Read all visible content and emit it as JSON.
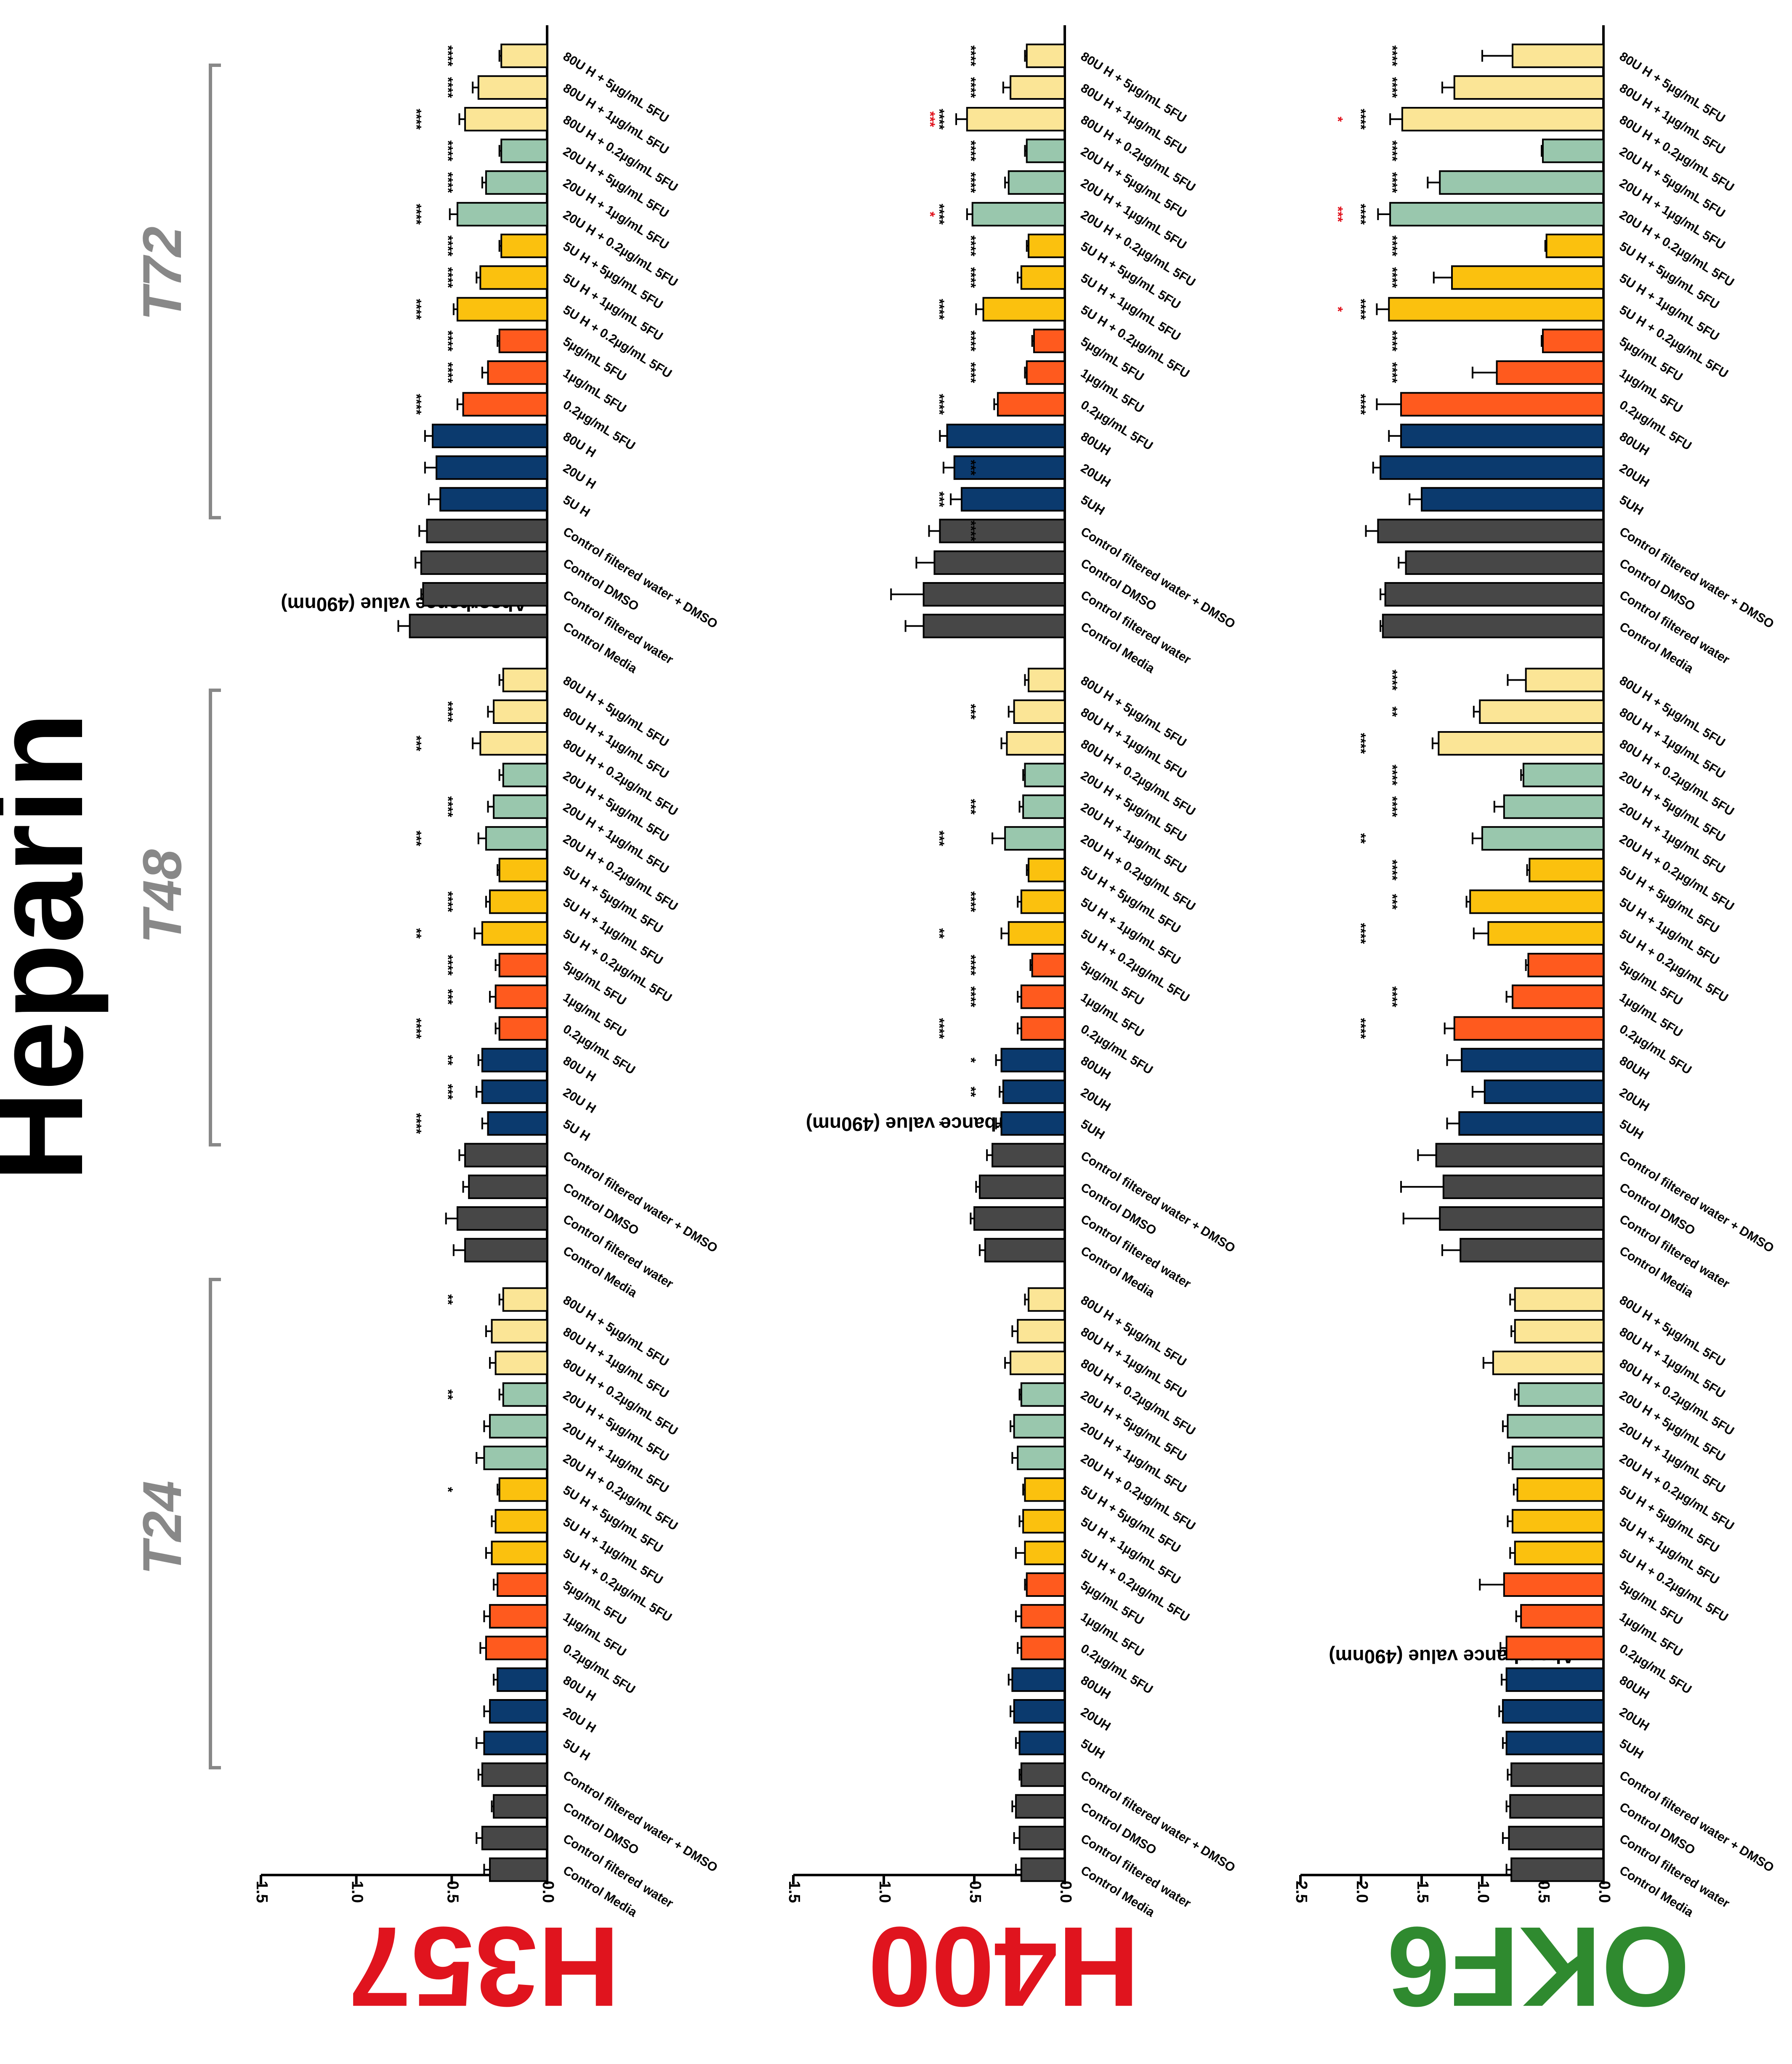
{
  "title": "Heparin",
  "time_labels": [
    "T24",
    "T48",
    "T72"
  ],
  "colors": {
    "control": "#474747",
    "dose5": "#0b3a6e",
    "frag": "#ff5a1e",
    "combo5": "#fbc10e",
    "combo20": "#99c7ad",
    "combo80": "#fbe596",
    "text": "#000000",
    "red": "#e0141e",
    "green": "#2f8a2f",
    "bracket": "#888888"
  },
  "group_colors": [
    "control",
    "control",
    "control",
    "control",
    "dose5",
    "dose5",
    "dose5",
    "frag",
    "frag",
    "frag",
    "combo5",
    "combo5",
    "combo5",
    "combo20",
    "combo20",
    "combo20",
    "combo80",
    "combo80",
    "combo80"
  ],
  "chart_data": [
    {
      "type": "bar",
      "cell_line": "H357",
      "cell_color": "#e0141e",
      "ylabel": "Absorbance value (490nm)",
      "ylim": [
        0,
        1.5
      ],
      "ticks": [
        "0.0",
        "0.5",
        "1.0",
        "1.5"
      ],
      "tick_values": [
        0,
        0.5,
        1.0,
        1.5
      ],
      "categories": [
        "Control Media",
        "Control filtered water",
        "Control DMSO",
        "Control filtered water + DMSO",
        "5U H",
        "20U H",
        "80U H",
        "0.2µg/mL 5FU",
        "1µg/mL 5FU",
        "5µg/mL 5FU",
        "5U H + 0.2µg/mL 5FU",
        "5U H + 1µg/mL 5FU",
        "5U H + 5µg/mL 5FU",
        "20U H + 0.2µg/mL 5FU",
        "20U H + 1µg/mL 5FU",
        "20U H + 5µg/mL 5FU",
        "80U H + 0.2µg/mL 5FU",
        "80U H + 1µg/mL 5FU",
        "80U H + 5µg/mL 5FU"
      ],
      "series": [
        {
          "name": "T24",
          "values": [
            0.3,
            0.34,
            0.28,
            0.34,
            0.33,
            0.3,
            0.26,
            0.32,
            0.3,
            0.26,
            0.29,
            0.27,
            0.25,
            0.33,
            0.3,
            0.23,
            0.27,
            0.29,
            0.23
          ],
          "errors": [
            0.03,
            0.03,
            0.01,
            0.02,
            0.04,
            0.03,
            0.02,
            0.03,
            0.03,
            0.02,
            0.03,
            0.02,
            0.01,
            0.04,
            0.03,
            0.02,
            0.03,
            0.03,
            0.02
          ],
          "stars": [
            "",
            "",
            "",
            "",
            "",
            "",
            "",
            "",
            "",
            "",
            "",
            "",
            "*",
            "",
            "",
            "**",
            "",
            "",
            "**"
          ],
          "star_colors": [
            "",
            "",
            "",
            "",
            "",
            "",
            "",
            "",
            "",
            "",
            "",
            "",
            "black",
            "",
            "",
            "black",
            "",
            "",
            "black"
          ]
        },
        {
          "name": "T48",
          "values": [
            0.43,
            0.47,
            0.41,
            0.43,
            0.31,
            0.34,
            0.34,
            0.25,
            0.27,
            0.25,
            0.34,
            0.3,
            0.25,
            0.32,
            0.28,
            0.23,
            0.35,
            0.28,
            0.23
          ],
          "errors": [
            0.06,
            0.06,
            0.03,
            0.03,
            0.03,
            0.03,
            0.02,
            0.02,
            0.03,
            0.02,
            0.04,
            0.02,
            0.01,
            0.04,
            0.03,
            0.02,
            0.04,
            0.03,
            0.02
          ],
          "stars": [
            "",
            "",
            "",
            "",
            "****",
            "***",
            "**",
            "****",
            "***",
            "****",
            "**",
            "****",
            "",
            "***",
            "****",
            "",
            "***",
            "****",
            ""
          ],
          "star_colors": [
            "",
            "",
            "",
            "",
            "black",
            "black",
            "black",
            "black",
            "black",
            "black",
            "black",
            "black",
            "",
            "black",
            "black",
            "",
            "black",
            "black",
            ""
          ]
        },
        {
          "name": "T72",
          "values": [
            0.72,
            0.65,
            0.66,
            0.63,
            0.56,
            0.58,
            0.6,
            0.44,
            0.31,
            0.25,
            0.47,
            0.35,
            0.24,
            0.47,
            0.32,
            0.24,
            0.43,
            0.36,
            0.24
          ],
          "errors": [
            0.06,
            0.01,
            0.03,
            0.04,
            0.06,
            0.06,
            0.04,
            0.03,
            0.03,
            0.01,
            0.02,
            0.02,
            0.01,
            0.04,
            0.02,
            0.01,
            0.03,
            0.03,
            0.01
          ],
          "stars": [
            "",
            "",
            "",
            "",
            "",
            "",
            "",
            "****",
            "****",
            "****",
            "****",
            "****",
            "****",
            "****",
            "****",
            "****",
            "****",
            "****",
            "****"
          ],
          "star_colors": [
            "",
            "",
            "",
            "",
            "",
            "",
            "",
            "black",
            "black",
            "black",
            "black",
            "black",
            "black",
            "black",
            "black",
            "black",
            "black",
            "black",
            "black"
          ]
        }
      ]
    },
    {
      "type": "bar",
      "cell_line": "H400",
      "cell_color": "#e0141e",
      "ylabel": "Absorbance value (490nm)",
      "ylim": [
        0,
        1.5
      ],
      "ticks": [
        "0.0",
        "0.5",
        "1.0",
        "1.5"
      ],
      "tick_values": [
        0,
        0.5,
        1.0,
        1.5
      ],
      "categories": [
        "Control Media",
        "Control filtered water",
        "Control DMSO",
        "Control filtered water + DMSO",
        "5UH",
        "20UH",
        "80UH",
        "0.2µg/mL 5FU",
        "1µg/mL 5FU",
        "5µg/mL 5FU",
        "5U H + 0.2µg/mL 5FU",
        "5U H + 1µg/mL 5FU",
        "5U H + 5µg/mL 5FU",
        "20U H + 0.2µg/mL 5FU",
        "20U H + 1µg/mL 5FU",
        "20U H + 5µg/mL 5FU",
        "80U H + 0.2µg/mL 5FU",
        "80U H + 1µg/mL 5FU",
        "80U H + 5µg/mL 5FU"
      ],
      "series": [
        {
          "name": "T24",
          "values": [
            0.24,
            0.25,
            0.27,
            0.24,
            0.25,
            0.28,
            0.29,
            0.24,
            0.24,
            0.21,
            0.22,
            0.23,
            0.22,
            0.26,
            0.28,
            0.24,
            0.3,
            0.26,
            0.2
          ],
          "errors": [
            0.03,
            0.03,
            0.02,
            0.01,
            0.02,
            0.02,
            0.02,
            0.02,
            0.03,
            0.01,
            0.05,
            0.02,
            0.01,
            0.03,
            0.02,
            0.01,
            0.03,
            0.03,
            0.02
          ],
          "stars": [
            "",
            "",
            "",
            "",
            "",
            "",
            "",
            "",
            "",
            "",
            "",
            "",
            "",
            "",
            "",
            "",
            "",
            "",
            ""
          ],
          "star_colors": [
            "",
            "",
            "",
            "",
            "",
            "",
            "",
            "",
            "",
            "",
            "",
            "",
            "",
            "",
            "",
            "",
            "",
            "",
            ""
          ]
        },
        {
          "name": "T48",
          "values": [
            0.44,
            0.5,
            0.47,
            0.4,
            0.35,
            0.34,
            0.35,
            0.24,
            0.24,
            0.18,
            0.31,
            0.24,
            0.2,
            0.33,
            0.23,
            0.22,
            0.32,
            0.28,
            0.2
          ],
          "errors": [
            0.03,
            0.02,
            0.02,
            0.03,
            0.03,
            0.02,
            0.03,
            0.02,
            0.02,
            0.01,
            0.04,
            0.02,
            0.01,
            0.07,
            0.02,
            0.01,
            0.03,
            0.03,
            0.02
          ],
          "stars": [
            "",
            "",
            "",
            "",
            "*",
            "**",
            "*",
            "****",
            "****",
            "****",
            "**",
            "****",
            "",
            "***",
            "***",
            "",
            "",
            "***",
            ""
          ],
          "star_colors": [
            "",
            "",
            "",
            "",
            "black",
            "black",
            "black",
            "black",
            "black",
            "black",
            "black",
            "black",
            "",
            "black",
            "black",
            "",
            "",
            "black",
            ""
          ]
        },
        {
          "name": "T72",
          "values": [
            0.78,
            0.78,
            0.72,
            0.69,
            0.57,
            0.61,
            0.65,
            0.37,
            0.21,
            0.17,
            0.45,
            0.24,
            0.2,
            0.51,
            0.31,
            0.21,
            0.54,
            0.3,
            0.21
          ],
          "errors": [
            0.1,
            0.18,
            0.1,
            0.06,
            0.06,
            0.06,
            0.04,
            0.02,
            0.01,
            0.01,
            0.04,
            0.02,
            0.01,
            0.03,
            0.02,
            0.01,
            0.06,
            0.04,
            0.01
          ],
          "stars": [
            "",
            "",
            "",
            "****",
            "***",
            "***",
            "",
            "****",
            "****",
            "****",
            "****",
            "****",
            "****",
            "****",
            "****",
            "****",
            "****",
            "****",
            "****"
          ],
          "star_colors": [
            "",
            "",
            "",
            "black",
            "black",
            "black",
            "",
            "black",
            "black",
            "black",
            "black",
            "black",
            "black",
            "black",
            "black",
            "black",
            "black",
            "black",
            "black"
          ],
          "red_stars": [
            "",
            "",
            "",
            "",
            "",
            "",
            "",
            "",
            "",
            "",
            "",
            "",
            "",
            "*",
            "",
            "",
            "***",
            "",
            ""
          ]
        }
      ]
    },
    {
      "type": "bar",
      "cell_line": "OKF6",
      "cell_color": "#2f8a2f",
      "ylabel": "Absorbance value (490nm)",
      "ylim": [
        0,
        2.5
      ],
      "ticks": [
        "0.0",
        "0.5",
        "1.0",
        "1.5",
        "2.0",
        "2.5"
      ],
      "tick_values": [
        0,
        0.5,
        1.0,
        1.5,
        2.0,
        2.5
      ],
      "categories": [
        "Control Media",
        "Control filtered water",
        "Control DMSO",
        "Control filtered water + DMSO",
        "5UH",
        "20UH",
        "80UH",
        "0.2µg/mL 5FU",
        "1µg/mL 5FU",
        "5µg/mL 5FU",
        "5U H + 0.2µg/mL 5FU",
        "5U H + 1µg/mL 5FU",
        "5U H + 5µg/mL 5FU",
        "20U H + 0.2µg/mL 5FU",
        "20U H + 1µg/mL 5FU",
        "20U H + 5µg/mL 5FU",
        "80U H + 0.2µg/mL 5FU",
        "80U H + 1µg/mL 5FU",
        "80U H + 5µg/mL 5FU"
      ],
      "series": [
        {
          "name": "T24",
          "values": [
            0.76,
            0.78,
            0.77,
            0.76,
            0.8,
            0.83,
            0.8,
            0.8,
            0.68,
            0.82,
            0.73,
            0.75,
            0.71,
            0.75,
            0.79,
            0.7,
            0.91,
            0.73,
            0.73
          ],
          "errors": [
            0.04,
            0.05,
            0.03,
            0.03,
            0.03,
            0.03,
            0.04,
            0.05,
            0.04,
            0.2,
            0.04,
            0.04,
            0.03,
            0.03,
            0.04,
            0.03,
            0.08,
            0.03,
            0.04
          ],
          "stars": [
            "",
            "",
            "",
            "",
            "",
            "",
            "",
            "",
            "",
            "",
            "",
            "",
            "",
            "",
            "",
            "",
            "",
            "",
            ""
          ],
          "star_colors": [
            "",
            "",
            "",
            "",
            "",
            "",
            "",
            "",
            "",
            "",
            "",
            "",
            "",
            "",
            "",
            "",
            "",
            "",
            ""
          ]
        },
        {
          "name": "T48",
          "values": [
            1.18,
            1.35,
            1.32,
            1.38,
            1.19,
            0.98,
            1.17,
            1.23,
            0.75,
            0.62,
            0.95,
            1.1,
            0.61,
            1.0,
            0.82,
            0.66,
            1.36,
            1.02,
            0.64
          ],
          "errors": [
            0.15,
            0.3,
            0.35,
            0.15,
            0.1,
            0.1,
            0.12,
            0.08,
            0.05,
            0.02,
            0.12,
            0.03,
            0.02,
            0.08,
            0.08,
            0.02,
            0.05,
            0.05,
            0.15
          ],
          "stars": [
            "",
            "",
            "",
            "",
            "",
            "",
            "",
            "****",
            "****",
            "",
            "****",
            "***",
            "****",
            "**",
            "****",
            "****",
            "****",
            "**",
            "****"
          ],
          "star_colors": [
            "",
            "",
            "",
            "",
            "",
            "",
            "",
            "black",
            "black",
            "",
            "black",
            "black",
            "black",
            "black",
            "black",
            "black",
            "black",
            "black",
            "black"
          ]
        },
        {
          "name": "T72",
          "values": [
            1.82,
            1.8,
            1.63,
            1.86,
            1.5,
            1.84,
            1.67,
            1.67,
            0.88,
            0.5,
            1.77,
            1.25,
            0.47,
            1.76,
            1.35,
            0.5,
            1.66,
            1.23,
            0.75
          ],
          "errors": [
            0.02,
            0.04,
            0.06,
            0.1,
            0.1,
            0.06,
            0.1,
            0.2,
            0.2,
            0.01,
            0.1,
            0.15,
            0.01,
            0.1,
            0.1,
            0.01,
            0.1,
            0.1,
            0.25
          ],
          "stars": [
            "",
            "",
            "",
            "",
            "",
            "",
            "",
            "****",
            "****",
            "****",
            "****",
            "****",
            "****",
            "****",
            "****",
            "****",
            "****",
            "****",
            "****"
          ],
          "star_colors": [
            "",
            "",
            "",
            "",
            "",
            "",
            "",
            "black",
            "black",
            "black",
            "black",
            "black",
            "black",
            "black",
            "black",
            "black",
            "black",
            "black",
            "black"
          ],
          "red_stars": [
            "",
            "",
            "",
            "",
            "",
            "",
            "",
            "",
            "",
            "",
            "*",
            "",
            "",
            "***",
            "",
            "",
            "*",
            "",
            ""
          ]
        }
      ]
    }
  ]
}
